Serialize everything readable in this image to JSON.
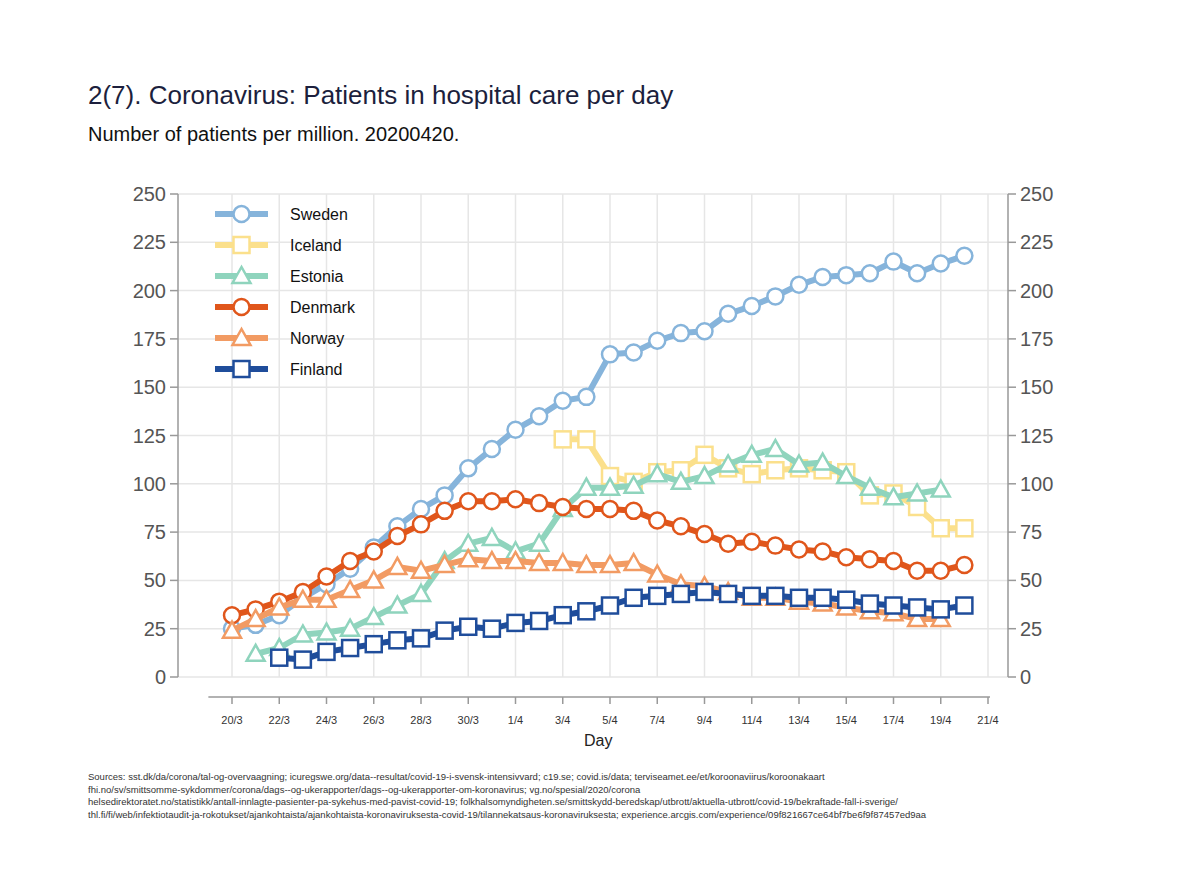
{
  "chart_data": {
    "type": "line",
    "title": "2(7). Coronavirus: Patients in hospital care per day",
    "subtitle": "Number of patients per million. 20200420.",
    "x_label": "Day",
    "source": [
      "Sources: sst.dk/da/corona/tal-og-overvaagning; icuregswe.org/data--resultat/covid-19-i-svensk-intensivvard; c19.se; covid.is/data;  terviseamet.ee/et/koroonaviirus/koroonakaart",
      "fhi.no/sv/smittsomme-sykdommer/corona/dags--og-ukerapporter/dags--og-ukerapporter-om-koronavirus; vg.no/spesial/2020/corona",
      "helsedirektoratet.no/statistikk/antall-innlagte-pasienter-pa-sykehus-med-pavist-covid-19; folkhalsomyndigheten.se/smittskydd-beredskap/utbrott/aktuella-utbrott/covid-19/bekraftade-fall-i-sverige/",
      "thl.fi/fi/web/infektiotaudit-ja-rokotukset/ajankohtaista/ajankohtaista-koronaviruksesta-covid-19/tilannekatsaus-koronaviruksesta; experience.arcgis.com/experience/09f821667ce64bf7be6f9f87457ed9aa"
    ],
    "categories": [
      "20/3",
      null,
      "22/3",
      null,
      "24/3",
      null,
      "26/3",
      null,
      "28/3",
      null,
      "30/3",
      null,
      "1/4",
      null,
      "3/4",
      null,
      "5/4",
      null,
      "7/4",
      null,
      "9/4",
      null,
      "11/4",
      null,
      "13/4",
      null,
      "15/4",
      null,
      "17/4",
      null,
      "19/4",
      null,
      "21/4"
    ],
    "series": [
      {
        "name": "Sweden",
        "color": "#86b4db",
        "marker": "circle",
        "line_style": "solid",
        "values": [
          25,
          27,
          32,
          41,
          48,
          56,
          67,
          78,
          87,
          94,
          108,
          118,
          128,
          135,
          143,
          145,
          167,
          168,
          174,
          178,
          179,
          188,
          192,
          197,
          203,
          207,
          208,
          209,
          215,
          209,
          214,
          218,
          null
        ]
      },
      {
        "name": "Iceland",
        "color": "#fbe08c",
        "marker": "square",
        "line_style": "solid",
        "values": [
          null,
          null,
          null,
          null,
          null,
          null,
          null,
          null,
          null,
          null,
          null,
          null,
          null,
          null,
          123,
          123,
          104,
          101,
          106,
          107,
          115,
          108,
          105,
          107,
          108,
          107,
          106,
          94,
          95,
          88,
          77,
          77,
          null
        ]
      },
      {
        "name": "Estonia",
        "color": "#8fd4bd",
        "marker": "triangle",
        "line_style": "solid",
        "values": [
          null,
          12,
          15,
          22,
          23,
          25,
          31,
          37,
          43,
          60,
          69,
          72,
          65,
          69,
          87,
          98,
          98,
          99,
          105,
          101,
          104,
          110,
          115,
          118,
          110,
          111,
          104,
          98,
          93,
          95,
          97,
          null,
          null
        ]
      },
      {
        "name": "Denmark",
        "color": "#e0561b",
        "marker": "circle",
        "line_style": "solid",
        "values": [
          32,
          35,
          39,
          44,
          52,
          60,
          65,
          73,
          79,
          86,
          91,
          91,
          92,
          90,
          88,
          87,
          87,
          86,
          81,
          78,
          74,
          69,
          70,
          68,
          66,
          65,
          62,
          61,
          60,
          55,
          55,
          58,
          null
        ]
      },
      {
        "name": "Norway",
        "color": "#f29b63",
        "marker": "triangle",
        "line_style": "solid",
        "values": [
          24,
          30,
          36,
          40,
          40,
          45,
          50,
          57,
          55,
          58,
          61,
          60,
          60,
          59,
          59,
          58,
          58,
          59,
          53,
          48,
          47,
          44,
          41,
          41,
          39,
          38,
          36,
          34,
          33,
          30,
          30,
          null,
          null
        ]
      },
      {
        "name": "Finland",
        "color": "#1f4d9b",
        "marker": "square",
        "line_style": "solid",
        "values": [
          null,
          null,
          10,
          9,
          13,
          15,
          17,
          19,
          20,
          24,
          26,
          25,
          28,
          29,
          32,
          34,
          37,
          41,
          42,
          43,
          44,
          43,
          42,
          42,
          41,
          41,
          40,
          38,
          37,
          36,
          35,
          37,
          null
        ]
      }
    ],
    "ylim": [
      0,
      250
    ],
    "yticks": [
      0,
      25,
      50,
      75,
      100,
      125,
      150,
      175,
      200,
      225,
      250
    ],
    "y2lim": [
      0,
      250
    ],
    "y2ticks": [
      0,
      25,
      50,
      75,
      100,
      125,
      150,
      175,
      200,
      225,
      250
    ],
    "grid": true,
    "legend": "top-left"
  }
}
